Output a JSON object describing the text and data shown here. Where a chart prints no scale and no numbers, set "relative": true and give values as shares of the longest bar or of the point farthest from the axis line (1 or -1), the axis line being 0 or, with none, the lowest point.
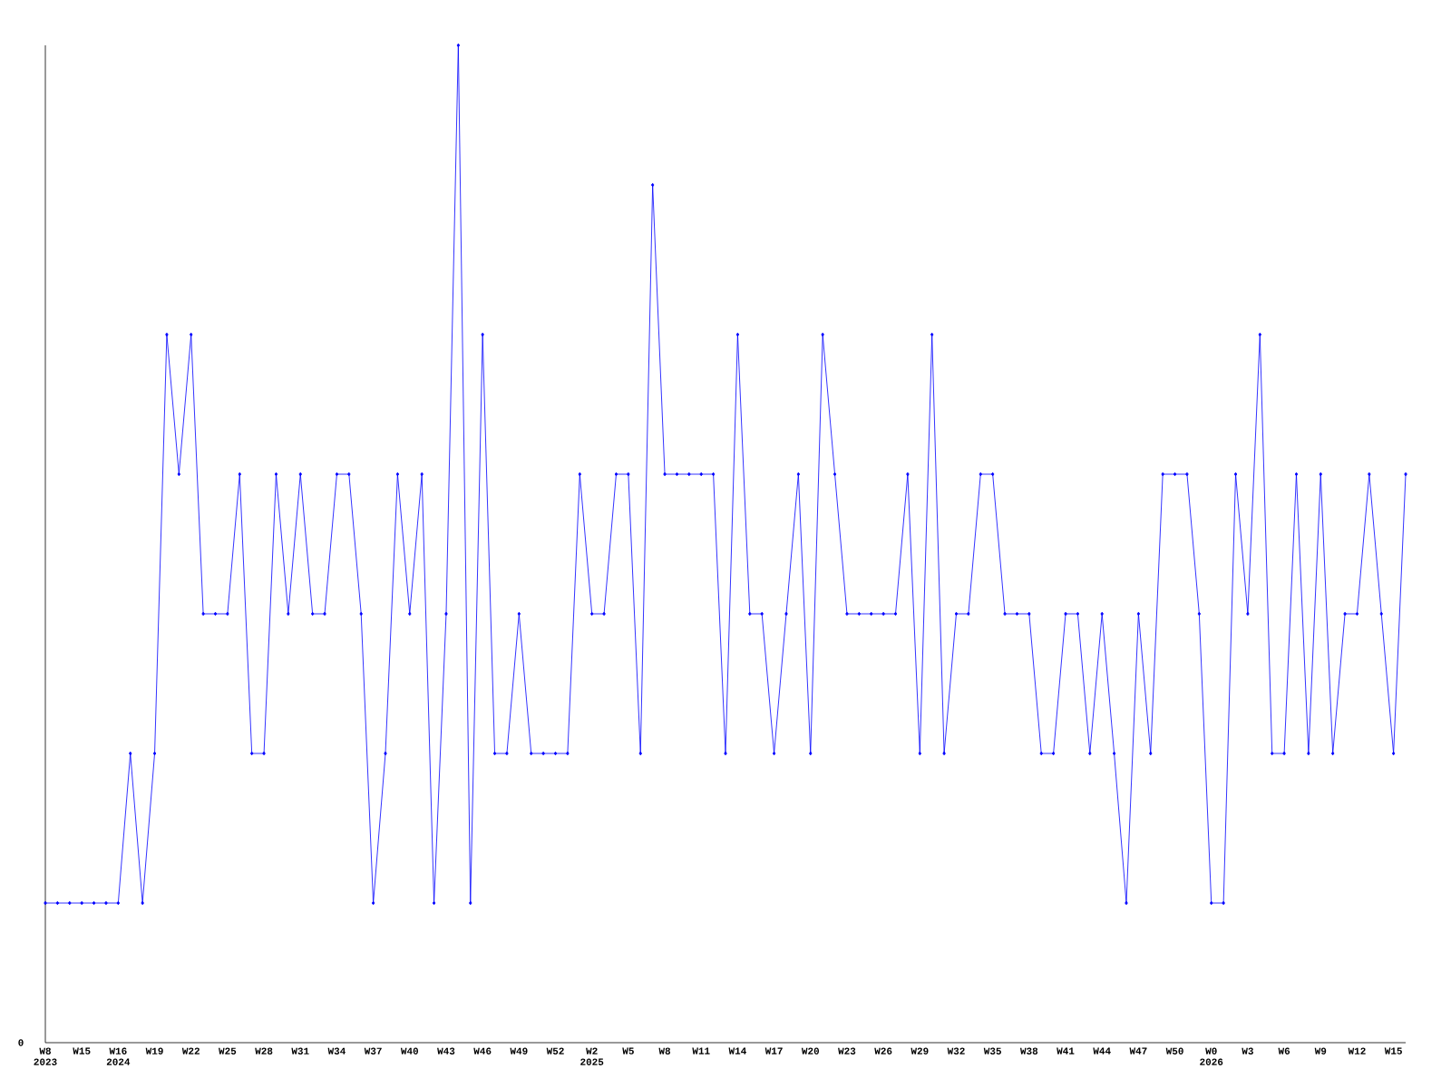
{
  "chart_data": {
    "type": "line",
    "relative": true,
    "color": "#0000ff",
    "marker": "diamond",
    "line_style": "solid",
    "categories": [
      "W8 2023",
      null,
      null,
      "W15",
      null,
      null,
      "W16 2024",
      null,
      null,
      "W19",
      null,
      null,
      "W22",
      null,
      null,
      "W25",
      null,
      null,
      "W28",
      null,
      null,
      "W31",
      null,
      null,
      "W34",
      null,
      null,
      "W37",
      null,
      null,
      "W40",
      null,
      null,
      "W43",
      null,
      null,
      "W46",
      null,
      null,
      "W49",
      null,
      null,
      "W52",
      null,
      null,
      "W2 2025",
      null,
      null,
      "W5",
      null,
      null,
      "W8",
      null,
      null,
      "W11",
      null,
      null,
      "W14",
      null,
      null,
      "W17",
      null,
      null,
      "W20",
      null,
      null,
      "W23",
      null,
      null,
      "W26",
      null,
      null,
      "W29",
      null,
      null,
      "W32",
      null,
      null,
      "W35",
      null,
      null,
      "W38",
      null,
      null,
      "W41",
      null,
      null,
      "W44",
      null,
      null,
      "W47",
      null,
      null,
      "W50",
      null,
      null,
      "W0 2026",
      null,
      null,
      "W3",
      null,
      null,
      "W6",
      null,
      null,
      "W9",
      null,
      null,
      "W12",
      null,
      null,
      "W15",
      null
    ],
    "values": [
      0.14,
      0.14,
      0.14,
      0.14,
      0.14,
      0.14,
      0.14,
      0.29,
      0.14,
      0.29,
      0.71,
      0.57,
      0.71,
      0.43,
      0.43,
      0.43,
      0.57,
      0.29,
      0.29,
      0.57,
      0.43,
      0.57,
      0.43,
      0.43,
      0.57,
      0.57,
      0.43,
      0.14,
      0.29,
      0.57,
      0.43,
      0.57,
      0.14,
      0.43,
      1,
      0.14,
      0.71,
      0.29,
      0.29,
      0.43,
      0.29,
      0.29,
      0.29,
      0.29,
      0.57,
      0.43,
      0.43,
      0.57,
      0.57,
      0.29,
      0.86,
      0.57,
      0.57,
      0.57,
      0.57,
      0.57,
      0.29,
      0.71,
      0.43,
      0.43,
      0.29,
      0.43,
      0.57,
      0.29,
      0.71,
      0.57,
      0.43,
      0.43,
      0.43,
      0.43,
      0.43,
      0.57,
      0.29,
      0.71,
      0.29,
      0.43,
      0.43,
      0.57,
      0.57,
      0.43,
      0.43,
      0.43,
      0.29,
      0.29,
      0.43,
      0.43,
      0.29,
      0.43,
      0.29,
      0.14,
      0.43,
      0.29,
      0.57,
      0.57,
      0.57,
      0.43,
      0.14,
      0.14,
      0.57,
      0.43,
      0.71,
      0.29,
      0.29,
      0.57,
      0.29,
      0.57,
      0.29,
      0.43,
      0.43,
      0.57,
      0.43,
      0.29,
      0.57
    ],
    "annotations": [
      "0"
    ]
  }
}
